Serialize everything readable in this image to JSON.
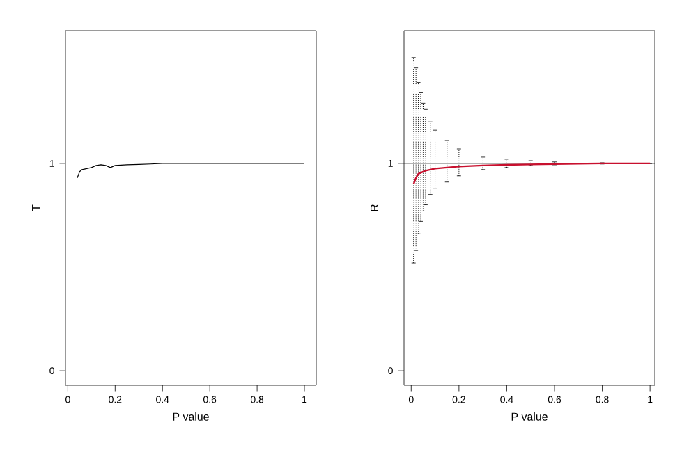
{
  "chart_data": [
    {
      "type": "line",
      "xlabel": "P value",
      "ylabel": "T",
      "xlim": [
        -0.01,
        1.05
      ],
      "ylim": [
        -0.07,
        1.64
      ],
      "xticks": [
        0,
        0.2,
        0.4,
        0.6,
        0.8,
        1
      ],
      "yticks": [
        0,
        1
      ],
      "series": [
        {
          "color": "#000000",
          "x": [
            0.04,
            0.05,
            0.06,
            0.08,
            0.1,
            0.12,
            0.14,
            0.16,
            0.18,
            0.2,
            0.25,
            0.3,
            0.35,
            0.4,
            0.5,
            0.6,
            0.7,
            0.8,
            0.9,
            1.0
          ],
          "values": [
            0.93,
            0.96,
            0.97,
            0.975,
            0.98,
            0.99,
            0.993,
            0.99,
            0.98,
            0.99,
            0.993,
            0.995,
            0.997,
            1.0,
            1.0,
            1.0,
            1.0,
            1.0,
            1.0,
            1.0
          ]
        }
      ]
    },
    {
      "type": "line",
      "xlabel": "P value",
      "ylabel": "R",
      "xlim": [
        -0.03,
        1.02
      ],
      "ylim": [
        -0.07,
        1.64
      ],
      "xticks": [
        0,
        0.2,
        0.4,
        0.6,
        0.8,
        1
      ],
      "yticks": [
        0,
        1
      ],
      "ref_lines": [
        {
          "axis": "y",
          "value": 1,
          "color": "#000000"
        }
      ],
      "series": [
        {
          "color": "#c8102e",
          "x": [
            0.01,
            0.02,
            0.03,
            0.04,
            0.05,
            0.06,
            0.08,
            0.1,
            0.15,
            0.2,
            0.3,
            0.4,
            0.5,
            0.6,
            0.8,
            1.0
          ],
          "values": [
            0.9,
            0.93,
            0.95,
            0.955,
            0.96,
            0.965,
            0.97,
            0.975,
            0.98,
            0.985,
            0.99,
            0.993,
            0.995,
            0.997,
            1.0,
            1.0
          ],
          "errors": [
            [
              0.52,
              1.51
            ],
            [
              0.58,
              1.46
            ],
            [
              0.66,
              1.39
            ],
            [
              0.72,
              1.34
            ],
            [
              0.77,
              1.29
            ],
            [
              0.8,
              1.26
            ],
            [
              0.85,
              1.2
            ],
            [
              0.88,
              1.16
            ],
            [
              0.91,
              1.11
            ],
            [
              0.94,
              1.07
            ],
            [
              0.97,
              1.03
            ],
            [
              0.98,
              1.02
            ],
            [
              0.99,
              1.013
            ],
            [
              0.993,
              1.007
            ],
            [
              0.997,
              1.003
            ],
            [
              1.0,
              1.0
            ]
          ]
        }
      ]
    }
  ]
}
